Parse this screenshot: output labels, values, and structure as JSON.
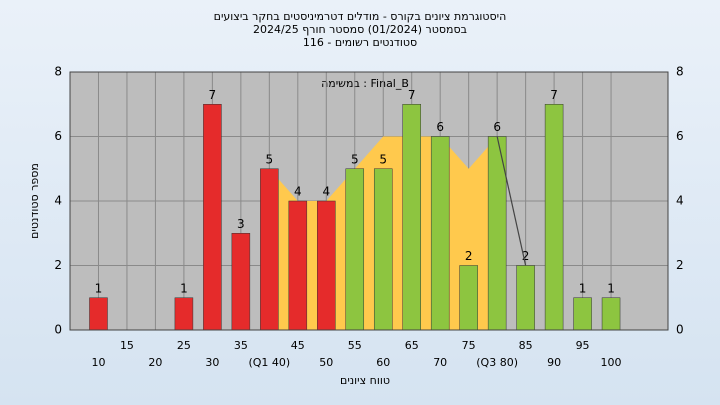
{
  "chart_data": {
    "type": "bar",
    "title": "היסטוגרמת ציונים בקורס - מודלים דטרמיניסטים בחקר ביצועים",
    "subtitle": "בסמסטר  (01/2024)  סמסטר חורף 2024/25",
    "subtitle2": "סטודנטים רשומים - 116",
    "annotation": "במשימה : Final_B",
    "x_label": "טווח ציונים",
    "y_label": "מספר סטודנטים",
    "categories": [
      "10",
      "15",
      "20",
      "25",
      "30",
      "35",
      "(Q1 40)",
      "45",
      "50",
      "55",
      "60",
      "65",
      "70",
      "75",
      "(Q3 80)",
      "85",
      "90",
      "95",
      "100"
    ],
    "values": [
      1,
      0,
      0,
      1,
      7,
      3,
      5,
      4,
      4,
      5,
      5,
      7,
      6,
      2,
      6,
      2,
      7,
      1,
      1
    ],
    "bar_colors": [
      "#e52b2b",
      "#e52b2b",
      "#e52b2b",
      "#e52b2b",
      "#e52b2b",
      "#e52b2b",
      "#e52b2b",
      "#e52b2b",
      "#e52b2b",
      "#8dc540",
      "#8dc540",
      "#8dc540",
      "#8dc540",
      "#8dc540",
      "#8dc540",
      "#8dc540",
      "#8dc540",
      "#8dc540",
      "#8dc540"
    ],
    "band": {
      "color": "#ffc94d",
      "values": [
        null,
        null,
        null,
        null,
        null,
        null,
        5,
        4,
        4,
        5,
        6,
        6,
        6,
        5,
        6,
        null,
        null,
        null,
        null
      ]
    },
    "trend": {
      "color": "#444444",
      "values": [
        null,
        null,
        null,
        null,
        null,
        null,
        null,
        null,
        null,
        null,
        null,
        null,
        null,
        null,
        6,
        2,
        null,
        null,
        null
      ]
    },
    "ylim": [
      0,
      8
    ],
    "yticks": [
      0,
      2,
      4,
      6,
      8
    ],
    "grid": true
  }
}
